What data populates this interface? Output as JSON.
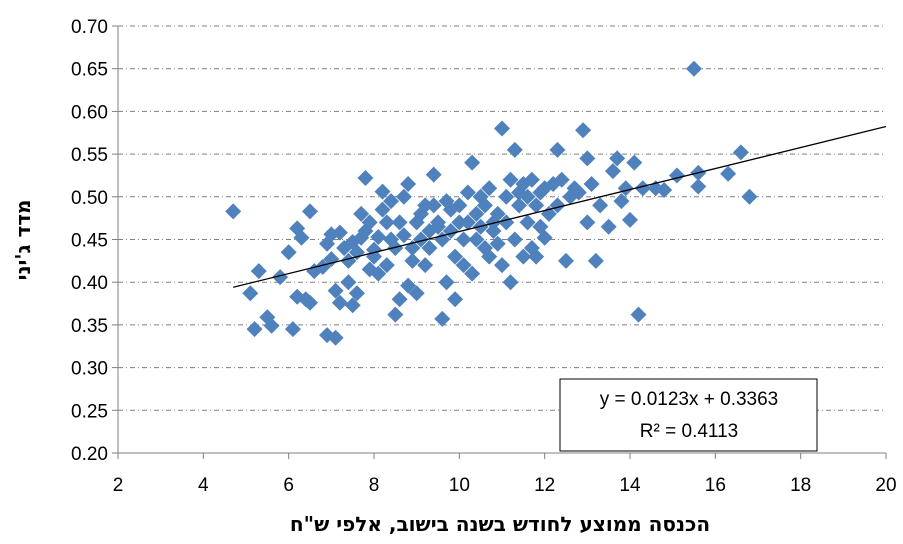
{
  "chart_data": {
    "type": "scatter",
    "title": "",
    "xlabel": "הכנסה ממוצע לחודש בשנה בישוב, אלפי ש\"ח",
    "ylabel": "מדד ג'יני",
    "xlim": [
      2,
      20
    ],
    "ylim": [
      0.2,
      0.7
    ],
    "x_ticks": [
      "2",
      "4",
      "6",
      "8",
      "10",
      "12",
      "14",
      "16",
      "18",
      "20"
    ],
    "y_ticks": [
      "0.20",
      "0.25",
      "0.30",
      "0.35",
      "0.40",
      "0.45",
      "0.50",
      "0.55",
      "0.60",
      "0.65",
      "0.70"
    ],
    "grid": "horizontal dashed",
    "marker_color": "#4F81BD",
    "trendline": {
      "slope": 0.0123,
      "intercept": 0.3363,
      "x_range": [
        4.7,
        20
      ]
    },
    "equation_label": "y = 0.0123x + 0.3363",
    "r2_label": "R² = 0.4113",
    "points": [
      [
        4.7,
        0.483
      ],
      [
        5.2,
        0.345
      ],
      [
        5.3,
        0.413
      ],
      [
        5.1,
        0.387
      ],
      [
        5.5,
        0.359
      ],
      [
        5.6,
        0.349
      ],
      [
        5.8,
        0.406
      ],
      [
        6.0,
        0.435
      ],
      [
        6.1,
        0.345
      ],
      [
        6.2,
        0.383
      ],
      [
        6.2,
        0.463
      ],
      [
        6.3,
        0.452
      ],
      [
        6.4,
        0.38
      ],
      [
        6.5,
        0.376
      ],
      [
        6.5,
        0.483
      ],
      [
        6.6,
        0.413
      ],
      [
        6.8,
        0.418
      ],
      [
        6.9,
        0.338
      ],
      [
        6.9,
        0.445
      ],
      [
        7.0,
        0.456
      ],
      [
        7.0,
        0.427
      ],
      [
        7.1,
        0.39
      ],
      [
        7.1,
        0.335
      ],
      [
        7.2,
        0.376
      ],
      [
        7.2,
        0.458
      ],
      [
        7.3,
        0.44
      ],
      [
        7.4,
        0.4
      ],
      [
        7.4,
        0.425
      ],
      [
        7.5,
        0.373
      ],
      [
        7.5,
        0.447
      ],
      [
        7.6,
        0.435
      ],
      [
        7.6,
        0.387
      ],
      [
        7.7,
        0.48
      ],
      [
        7.7,
        0.452
      ],
      [
        7.8,
        0.46
      ],
      [
        7.8,
        0.522
      ],
      [
        7.9,
        0.47
      ],
      [
        7.9,
        0.415
      ],
      [
        8.0,
        0.43
      ],
      [
        8.0,
        0.438
      ],
      [
        8.1,
        0.41
      ],
      [
        8.1,
        0.453
      ],
      [
        8.2,
        0.485
      ],
      [
        8.2,
        0.506
      ],
      [
        8.3,
        0.42
      ],
      [
        8.3,
        0.47
      ],
      [
        8.4,
        0.495
      ],
      [
        8.4,
        0.45
      ],
      [
        8.5,
        0.362
      ],
      [
        8.5,
        0.44
      ],
      [
        8.6,
        0.38
      ],
      [
        8.6,
        0.47
      ],
      [
        8.7,
        0.455
      ],
      [
        8.7,
        0.5
      ],
      [
        8.8,
        0.396
      ],
      [
        8.8,
        0.515
      ],
      [
        8.9,
        0.425
      ],
      [
        8.9,
        0.44
      ],
      [
        9.0,
        0.47
      ],
      [
        9.0,
        0.387
      ],
      [
        9.1,
        0.45
      ],
      [
        9.1,
        0.48
      ],
      [
        9.2,
        0.49
      ],
      [
        9.2,
        0.42
      ],
      [
        9.3,
        0.46
      ],
      [
        9.3,
        0.44
      ],
      [
        9.4,
        0.526
      ],
      [
        9.4,
        0.49
      ],
      [
        9.5,
        0.465
      ],
      [
        9.5,
        0.47
      ],
      [
        9.6,
        0.45
      ],
      [
        9.6,
        0.357
      ],
      [
        9.7,
        0.495
      ],
      [
        9.7,
        0.4
      ],
      [
        9.8,
        0.485
      ],
      [
        9.8,
        0.46
      ],
      [
        9.9,
        0.43
      ],
      [
        9.9,
        0.38
      ],
      [
        10.0,
        0.47
      ],
      [
        10.0,
        0.49
      ],
      [
        10.1,
        0.42
      ],
      [
        10.1,
        0.45
      ],
      [
        10.2,
        0.505
      ],
      [
        10.2,
        0.47
      ],
      [
        10.3,
        0.54
      ],
      [
        10.3,
        0.41
      ],
      [
        10.4,
        0.48
      ],
      [
        10.4,
        0.45
      ],
      [
        10.5,
        0.5
      ],
      [
        10.5,
        0.465
      ],
      [
        10.6,
        0.44
      ],
      [
        10.6,
        0.49
      ],
      [
        10.7,
        0.51
      ],
      [
        10.7,
        0.43
      ],
      [
        10.8,
        0.47
      ],
      [
        10.8,
        0.46
      ],
      [
        10.9,
        0.48
      ],
      [
        10.9,
        0.445
      ],
      [
        11.0,
        0.58
      ],
      [
        11.0,
        0.42
      ],
      [
        11.1,
        0.5
      ],
      [
        11.1,
        0.47
      ],
      [
        11.2,
        0.52
      ],
      [
        11.2,
        0.4
      ],
      [
        11.3,
        0.555
      ],
      [
        11.3,
        0.45
      ],
      [
        11.4,
        0.49
      ],
      [
        11.4,
        0.505
      ],
      [
        11.5,
        0.515
      ],
      [
        11.5,
        0.43
      ],
      [
        11.6,
        0.47
      ],
      [
        11.6,
        0.5
      ],
      [
        11.7,
        0.44
      ],
      [
        11.7,
        0.52
      ],
      [
        11.8,
        0.49
      ],
      [
        11.8,
        0.43
      ],
      [
        11.9,
        0.505
      ],
      [
        11.9,
        0.465
      ],
      [
        12.0,
        0.51
      ],
      [
        12.0,
        0.452
      ],
      [
        12.1,
        0.48
      ],
      [
        12.2,
        0.515
      ],
      [
        12.3,
        0.49
      ],
      [
        12.3,
        0.555
      ],
      [
        12.4,
        0.52
      ],
      [
        12.5,
        0.425
      ],
      [
        12.6,
        0.5
      ],
      [
        12.7,
        0.51
      ],
      [
        12.8,
        0.505
      ],
      [
        12.9,
        0.578
      ],
      [
        13.0,
        0.545
      ],
      [
        13.0,
        0.47
      ],
      [
        13.1,
        0.515
      ],
      [
        13.2,
        0.425
      ],
      [
        13.3,
        0.49
      ],
      [
        13.5,
        0.465
      ],
      [
        13.6,
        0.53
      ],
      [
        13.7,
        0.545
      ],
      [
        13.8,
        0.495
      ],
      [
        13.9,
        0.51
      ],
      [
        14.0,
        0.473
      ],
      [
        14.1,
        0.54
      ],
      [
        14.2,
        0.362
      ],
      [
        14.3,
        0.51
      ],
      [
        14.6,
        0.51
      ],
      [
        14.8,
        0.508
      ],
      [
        15.1,
        0.525
      ],
      [
        15.5,
        0.65
      ],
      [
        15.6,
        0.512
      ],
      [
        15.6,
        0.528
      ],
      [
        16.3,
        0.527
      ],
      [
        16.6,
        0.552
      ],
      [
        16.8,
        0.5
      ]
    ]
  }
}
